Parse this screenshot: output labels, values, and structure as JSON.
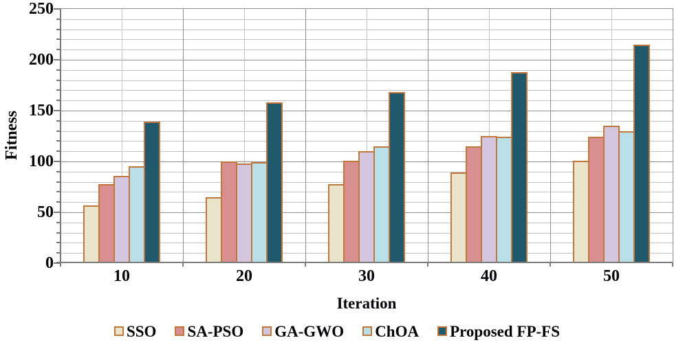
{
  "chart_data": {
    "type": "bar",
    "title": "",
    "xlabel": "Iteration",
    "ylabel": "Fitness",
    "categories": [
      "10",
      "20",
      "30",
      "40",
      "50"
    ],
    "series": [
      {
        "name": "SSO",
        "color": "#e9e4ca",
        "values": [
          57,
          65,
          78,
          89,
          101
        ]
      },
      {
        "name": "SA-PSO",
        "color": "#d98f90",
        "values": [
          78,
          100,
          101,
          115,
          124
        ]
      },
      {
        "name": "GA-GWO",
        "color": "#d5c6e0",
        "values": [
          86,
          98,
          110,
          125,
          135
        ]
      },
      {
        "name": "ChOA",
        "color": "#b9dfe9",
        "values": [
          95,
          99,
          115,
          124,
          130
        ]
      },
      {
        "name": "Proposed FP-FS",
        "color": "#20596b",
        "values": [
          139,
          158,
          168,
          188,
          215
        ]
      }
    ],
    "ylim": [
      0,
      250
    ],
    "y_major_step": 50,
    "y_minor_step": 10,
    "bar_border_color": "#c1763c",
    "grid": {
      "horizontal": "major+minor",
      "vertical": "major at category boundaries, minor at category centers"
    },
    "legend_position": "bottom",
    "colors": {
      "grid_minor": "#c3c3c3",
      "grid_major": "#8f8f8f",
      "axis_line": "#7a7a7a",
      "text": "#060608"
    }
  }
}
